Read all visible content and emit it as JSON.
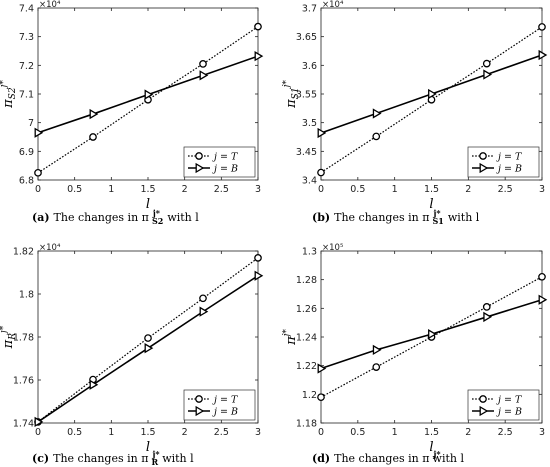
{
  "chart_data": [
    {
      "type": "line",
      "panel_tag": "(a)",
      "caption": "The changes in π",
      "caption_sup": "j*",
      "caption_sub": "S2",
      "caption_tail": "with l",
      "ylabel": "π",
      "ylabel_sub": "S2",
      "ylabel_sup": "j*",
      "xlabel": "l",
      "exponent_label": "×10⁴",
      "xlim": [
        0,
        3
      ],
      "ylim": [
        6.8,
        7.4
      ],
      "xticks": [
        "0",
        "0.5",
        "1",
        "1.5",
        "2",
        "2.5",
        "3"
      ],
      "yticks": [
        "6.8",
        "6.9",
        "7",
        "7.1",
        "7.2",
        "7.3",
        "7.4"
      ],
      "x": [
        0,
        0.75,
        1.5,
        2.25,
        3
      ],
      "series": [
        {
          "name": "j = T",
          "values": [
            6.825,
            6.95,
            7.08,
            7.205,
            7.335
          ]
        },
        {
          "name": "j = B",
          "values": [
            6.965,
            7.03,
            7.098,
            7.165,
            7.232
          ]
        }
      ],
      "legend_position": "bottom-right",
      "grid": false
    },
    {
      "type": "line",
      "panel_tag": "(b)",
      "caption": "The changes in π",
      "caption_sup": "j*",
      "caption_sub": "S1",
      "caption_tail": "with l",
      "ylabel": "π",
      "ylabel_sub": "S1",
      "ylabel_sup": "j*",
      "xlabel": "l",
      "exponent_label": "×10⁴",
      "xlim": [
        0,
        3
      ],
      "ylim": [
        3.4,
        3.7
      ],
      "xticks": [
        "0",
        "0.5",
        "1",
        "1.5",
        "2",
        "2.5",
        "3"
      ],
      "yticks": [
        "3.4",
        "3.45",
        "3.5",
        "3.55",
        "3.6",
        "3.65",
        "3.7"
      ],
      "x": [
        0,
        0.75,
        1.5,
        2.25,
        3
      ],
      "series": [
        {
          "name": "j = T",
          "values": [
            3.413,
            3.476,
            3.54,
            3.603,
            3.667
          ]
        },
        {
          "name": "j = B",
          "values": [
            3.482,
            3.516,
            3.55,
            3.584,
            3.618
          ]
        }
      ],
      "legend_position": "bottom-right",
      "grid": false
    },
    {
      "type": "line",
      "panel_tag": "(c)",
      "caption": "The changes in π",
      "caption_sup": "j*",
      "caption_sub": "R",
      "caption_tail": "with l",
      "ylabel": "π",
      "ylabel_sub": "R",
      "ylabel_sup": "j*",
      "xlabel": "l",
      "exponent_label": "×10⁴",
      "xlim": [
        0,
        3
      ],
      "ylim": [
        1.74,
        1.82
      ],
      "xticks": [
        "0",
        "0.5",
        "1",
        "1.5",
        "2",
        "2.5",
        "3"
      ],
      "yticks": [
        "1.74",
        "1.76",
        "1.78",
        "1.8",
        "1.82"
      ],
      "x": [
        0,
        0.75,
        1.5,
        2.25,
        3
      ],
      "series": [
        {
          "name": "j = T",
          "values": [
            1.7405,
            1.7602,
            1.7795,
            1.798,
            1.8168
          ]
        },
        {
          "name": "j = B",
          "values": [
            1.7405,
            1.7578,
            1.7748,
            1.7918,
            1.8085
          ]
        }
      ],
      "legend_position": "bottom-right",
      "grid": false
    },
    {
      "type": "line",
      "panel_tag": "(d)",
      "caption": "The changes in π",
      "caption_sup": "j*",
      "caption_sub": "",
      "caption_tail": "with l",
      "ylabel": "π",
      "ylabel_sub": "",
      "ylabel_sup": "j*",
      "xlabel": "l",
      "exponent_label": "×10⁵",
      "xlim": [
        0,
        3
      ],
      "ylim": [
        1.18,
        1.3
      ],
      "xticks": [
        "0",
        "0.5",
        "1",
        "1.5",
        "2",
        "2.5",
        "3"
      ],
      "yticks": [
        "1.18",
        "1.2",
        "1.22",
        "1.24",
        "1.26",
        "1.28",
        "1.3"
      ],
      "x": [
        0,
        0.75,
        1.5,
        2.25,
        3
      ],
      "series": [
        {
          "name": "j = T",
          "values": [
            1.198,
            1.219,
            1.24,
            1.261,
            1.282
          ]
        },
        {
          "name": "j = B",
          "values": [
            1.218,
            1.231,
            1.242,
            1.254,
            1.266
          ]
        }
      ],
      "legend_position": "bottom-right",
      "grid": false
    }
  ]
}
